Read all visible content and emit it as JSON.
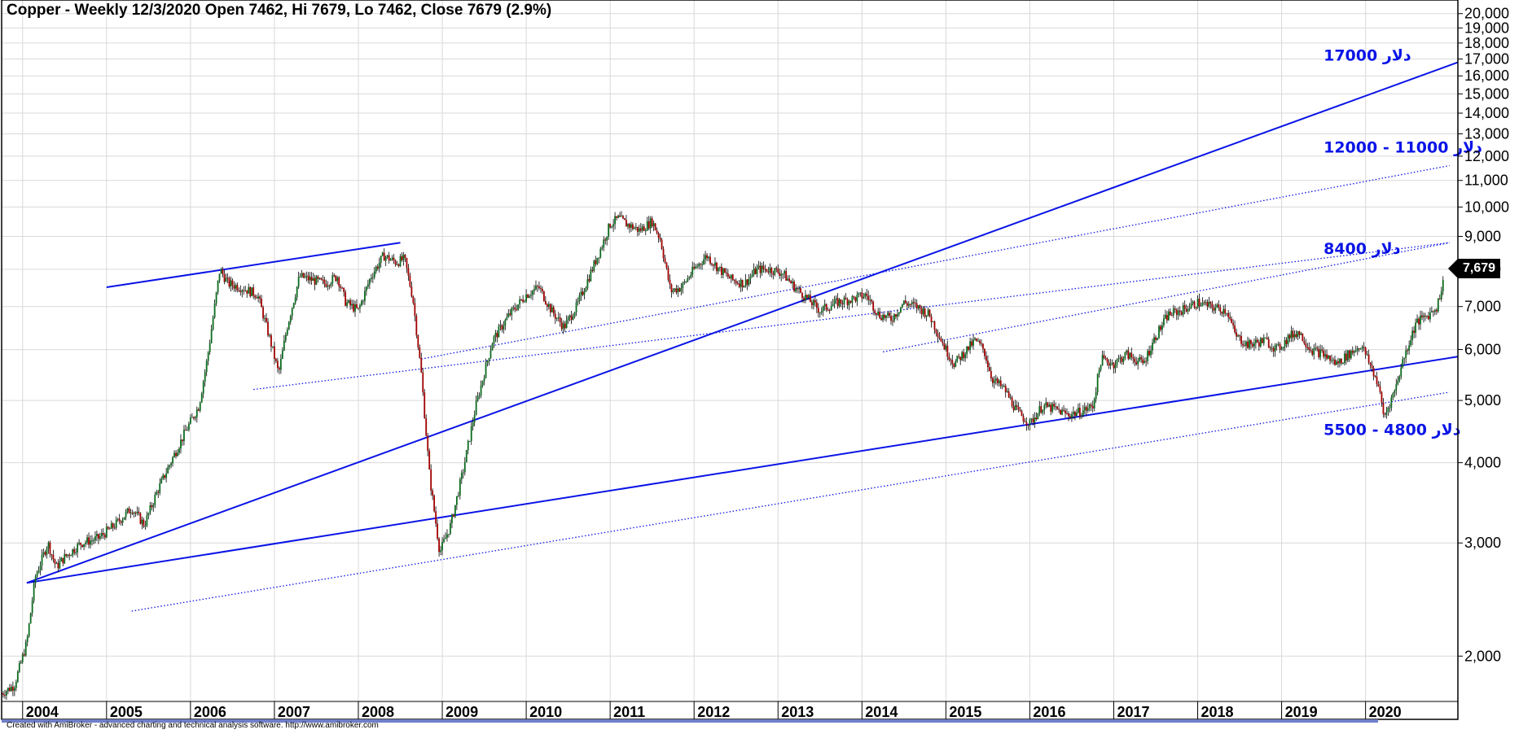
{
  "title": "Copper - Weekly 12/3/2020 Open 7462, Hi 7679, Lo 7462, Close 7679 (2.9%)",
  "footer": "Created with AmiBroker - advanced charting and technical analysis software. http://www.amibroker.com",
  "last_price_label": "7,679",
  "colors": {
    "up": "#0b6b1e",
    "down": "#a10000",
    "trendline": "#0a14e6",
    "grid": "#d9d9d9"
  },
  "chart_data": {
    "type": "candlestick",
    "timeframe": "weekly",
    "y_scale": "log",
    "ylim": [
      1700,
      21000
    ],
    "xlim": [
      2003.75,
      2021.1
    ],
    "y_ticks": [
      "2,000",
      "3,000",
      "4,000",
      "5,000",
      "6,000",
      "7,000",
      "8,000",
      "9,000",
      "10,000",
      "11,000",
      "12,000",
      "13,000",
      "14,000",
      "15,000",
      "16,000",
      "17,000",
      "18,000",
      "19,000",
      "20,000"
    ],
    "y_tick_values": [
      2000,
      3000,
      4000,
      5000,
      6000,
      7000,
      8000,
      9000,
      10000,
      11000,
      12000,
      13000,
      14000,
      15000,
      16000,
      17000,
      18000,
      19000,
      20000
    ],
    "x_ticks": [
      "2004",
      "2005",
      "2006",
      "2007",
      "2008",
      "2009",
      "2010",
      "2011",
      "2012",
      "2013",
      "2014",
      "2015",
      "2016",
      "2017",
      "2018",
      "2019",
      "2020"
    ],
    "last_bar": {
      "date": "12/3/2020",
      "open": 7462,
      "high": 7679,
      "low": 7462,
      "close": 7679,
      "change_pct": 2.9
    },
    "price_path": [
      [
        2003.75,
        1750
      ],
      [
        2003.9,
        1800
      ],
      [
        2004.05,
        2100
      ],
      [
        2004.15,
        2650
      ],
      [
        2004.3,
        3000
      ],
      [
        2004.4,
        2750
      ],
      [
        2004.5,
        2850
      ],
      [
        2004.7,
        3000
      ],
      [
        2004.9,
        3050
      ],
      [
        2005.1,
        3200
      ],
      [
        2005.3,
        3400
      ],
      [
        2005.45,
        3200
      ],
      [
        2005.6,
        3600
      ],
      [
        2005.8,
        4100
      ],
      [
        2005.95,
        4500
      ],
      [
        2006.1,
        4900
      ],
      [
        2006.2,
        5800
      ],
      [
        2006.35,
        8000
      ],
      [
        2006.45,
        7600
      ],
      [
        2006.6,
        7500
      ],
      [
        2006.8,
        7300
      ],
      [
        2006.95,
        6200
      ],
      [
        2007.05,
        5500
      ],
      [
        2007.15,
        6500
      ],
      [
        2007.3,
        7800
      ],
      [
        2007.45,
        7700
      ],
      [
        2007.6,
        7600
      ],
      [
        2007.75,
        7800
      ],
      [
        2007.85,
        7100
      ],
      [
        2008.0,
        6900
      ],
      [
        2008.15,
        7800
      ],
      [
        2008.3,
        8400
      ],
      [
        2008.45,
        8200
      ],
      [
        2008.55,
        8300
      ],
      [
        2008.65,
        7200
      ],
      [
        2008.75,
        5500
      ],
      [
        2008.85,
        3800
      ],
      [
        2008.97,
        2900
      ],
      [
        2009.1,
        3200
      ],
      [
        2009.25,
        3900
      ],
      [
        2009.4,
        4900
      ],
      [
        2009.6,
        6200
      ],
      [
        2009.8,
        6800
      ],
      [
        2010.0,
        7300
      ],
      [
        2010.15,
        7500
      ],
      [
        2010.3,
        6900
      ],
      [
        2010.45,
        6500
      ],
      [
        2010.6,
        7000
      ],
      [
        2010.75,
        7800
      ],
      [
        2010.9,
        8700
      ],
      [
        2011.0,
        9400
      ],
      [
        2011.1,
        9600
      ],
      [
        2011.2,
        9400
      ],
      [
        2011.35,
        9200
      ],
      [
        2011.5,
        9500
      ],
      [
        2011.6,
        8900
      ],
      [
        2011.72,
        7400
      ],
      [
        2011.85,
        7500
      ],
      [
        2012.0,
        8000
      ],
      [
        2012.15,
        8400
      ],
      [
        2012.3,
        8000
      ],
      [
        2012.45,
        7700
      ],
      [
        2012.6,
        7600
      ],
      [
        2012.75,
        8000
      ],
      [
        2012.9,
        8000
      ],
      [
        2013.05,
        7900
      ],
      [
        2013.2,
        7500
      ],
      [
        2013.35,
        7200
      ],
      [
        2013.5,
        6900
      ],
      [
        2013.7,
        7100
      ],
      [
        2013.9,
        7200
      ],
      [
        2014.05,
        7300
      ],
      [
        2014.2,
        6800
      ],
      [
        2014.35,
        6700
      ],
      [
        2014.5,
        7100
      ],
      [
        2014.65,
        7000
      ],
      [
        2014.8,
        6800
      ],
      [
        2015.0,
        6000
      ],
      [
        2015.1,
        5700
      ],
      [
        2015.25,
        6000
      ],
      [
        2015.35,
        6200
      ],
      [
        2015.45,
        6000
      ],
      [
        2015.55,
        5400
      ],
      [
        2015.7,
        5200
      ],
      [
        2015.85,
        4800
      ],
      [
        2016.0,
        4600
      ],
      [
        2016.15,
        4900
      ],
      [
        2016.3,
        4850
      ],
      [
        2016.45,
        4750
      ],
      [
        2016.6,
        4800
      ],
      [
        2016.75,
        4900
      ],
      [
        2016.85,
        5800
      ],
      [
        2017.0,
        5700
      ],
      [
        2017.15,
        5900
      ],
      [
        2017.35,
        5700
      ],
      [
        2017.5,
        6300
      ],
      [
        2017.65,
        6800
      ],
      [
        2017.8,
        6900
      ],
      [
        2018.0,
        7100
      ],
      [
        2018.15,
        7000
      ],
      [
        2018.35,
        6900
      ],
      [
        2018.45,
        6300
      ],
      [
        2018.6,
        6100
      ],
      [
        2018.8,
        6200
      ],
      [
        2018.95,
        6000
      ],
      [
        2019.1,
        6300
      ],
      [
        2019.2,
        6400
      ],
      [
        2019.35,
        6000
      ],
      [
        2019.5,
        5900
      ],
      [
        2019.65,
        5700
      ],
      [
        2019.8,
        5900
      ],
      [
        2019.95,
        6100
      ],
      [
        2020.05,
        5700
      ],
      [
        2020.15,
        5300
      ],
      [
        2020.22,
        4700
      ],
      [
        2020.35,
        5200
      ],
      [
        2020.45,
        5800
      ],
      [
        2020.6,
        6600
      ],
      [
        2020.75,
        6800
      ],
      [
        2020.85,
        7000
      ],
      [
        2020.93,
        7679
      ]
    ],
    "trendlines": [
      {
        "style": "solid",
        "from": [
          2004.05,
          2600
        ],
        "to": [
          2021.1,
          16800
        ]
      },
      {
        "style": "solid",
        "from": [
          2004.05,
          2600
        ],
        "to": [
          2021.1,
          5850
        ]
      },
      {
        "style": "solid",
        "from": [
          2005.0,
          7500
        ],
        "to": [
          2008.5,
          8800
        ]
      },
      {
        "style": "dotted",
        "from": [
          2005.3,
          2350
        ],
        "to": [
          2021.0,
          5150
        ]
      },
      {
        "style": "dotted",
        "from": [
          2006.75,
          5200
        ],
        "to": [
          2021.0,
          8800
        ]
      },
      {
        "style": "dotted",
        "from": [
          2008.75,
          5800
        ],
        "to": [
          2021.0,
          11600
        ]
      },
      {
        "style": "dotted",
        "from": [
          2014.25,
          5950
        ],
        "to": [
          2021.0,
          8800
        ]
      }
    ],
    "annotations": [
      {
        "text": "دلار 17000",
        "x": 2019.5,
        "y": 16900
      },
      {
        "text": "دلار 11000 - 12000",
        "x": 2019.5,
        "y": 12150
      },
      {
        "text": "دلار 8400",
        "x": 2019.5,
        "y": 8450
      },
      {
        "text": "دلار 4800 - 5500",
        "x": 2019.5,
        "y": 4420
      }
    ]
  }
}
